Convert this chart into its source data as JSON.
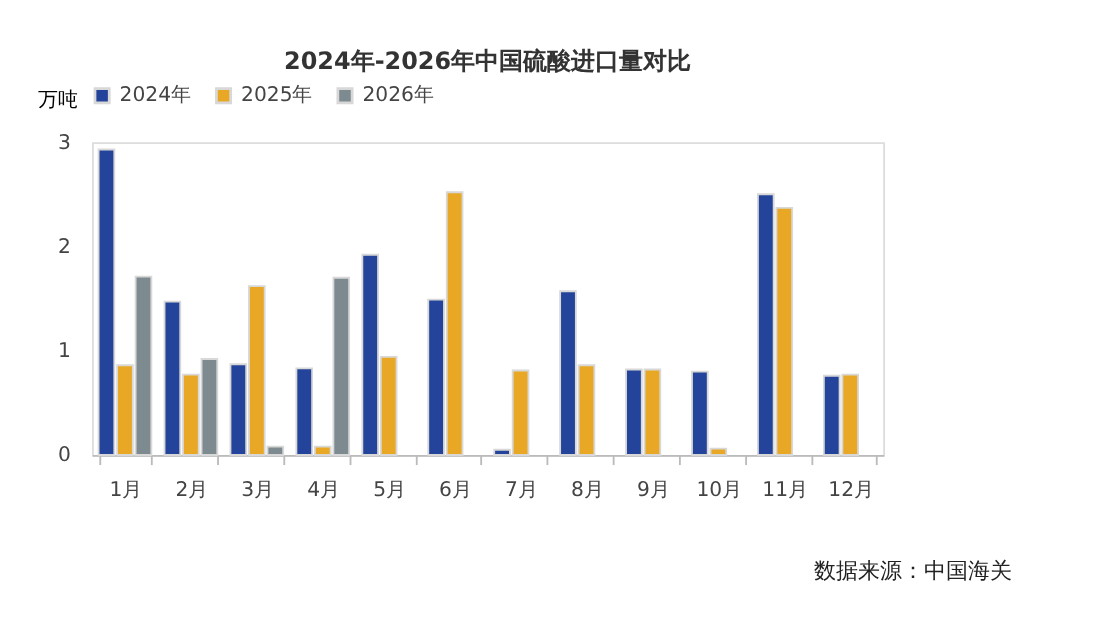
{
  "chart_data": {
    "type": "bar",
    "title": "2024年-2026年中国硫酸进口量对比",
    "ylabel": "万吨",
    "categories": [
      "1月",
      "2月",
      "3月",
      "4月",
      "5月",
      "6月",
      "7月",
      "8月",
      "9月",
      "10月",
      "11月",
      "12月"
    ],
    "series": [
      {
        "name": "2024年",
        "color": "#23449a",
        "values": [
          2.93,
          1.47,
          0.87,
          0.83,
          1.92,
          1.49,
          0.05,
          1.57,
          0.82,
          0.8,
          2.5,
          0.76
        ]
      },
      {
        "name": "2025年",
        "color": "#e8a825",
        "values": [
          0.86,
          0.77,
          1.62,
          0.08,
          0.94,
          2.52,
          0.81,
          0.86,
          0.82,
          0.06,
          2.37,
          0.77
        ]
      },
      {
        "name": "2026年",
        "color": "#7d8a8f",
        "values": [
          1.71,
          0.92,
          0.08,
          1.7,
          null,
          null,
          null,
          null,
          null,
          null,
          null,
          null
        ]
      }
    ],
    "ylim": [
      0,
      3
    ],
    "yticks": [
      0,
      1,
      2,
      3
    ],
    "grid": false,
    "legend": "top",
    "annotations": [
      "数据来源：中国海关"
    ]
  }
}
